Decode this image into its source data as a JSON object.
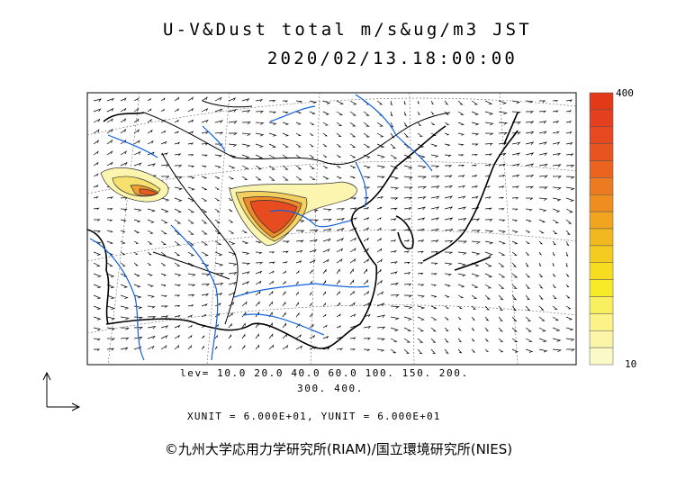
{
  "title": {
    "line1": "U-V&Dust total m/s&ug/m3 JST",
    "line2": "2020/02/13.18:00:00"
  },
  "levels": {
    "line1": "lev= 10.0 20.0 40.0 60.0 100. 150. 200.",
    "line2": "300. 400."
  },
  "units_line": "XUNIT = 6.000E+01, YUNIT = 6.000E+01",
  "colorbar": {
    "max_label": "400",
    "min_label": "10",
    "colors": [
      "#fbf9c8",
      "#fbf5a8",
      "#fbf288",
      "#f9ee60",
      "#f7ea28",
      "#f6dd20",
      "#f4cc20",
      "#f2b820",
      "#f0a420",
      "#ee8e20",
      "#ec7a20",
      "#ea6420",
      "#e85420",
      "#e64820",
      "#e44020",
      "#e23a18"
    ]
  },
  "copyright": "©九州大学応用力学研究所(RIAM)/国立環境研究所(NIES)",
  "colors": {
    "coast": "#000000",
    "river": "#1060e0",
    "grid": "#555555"
  }
}
